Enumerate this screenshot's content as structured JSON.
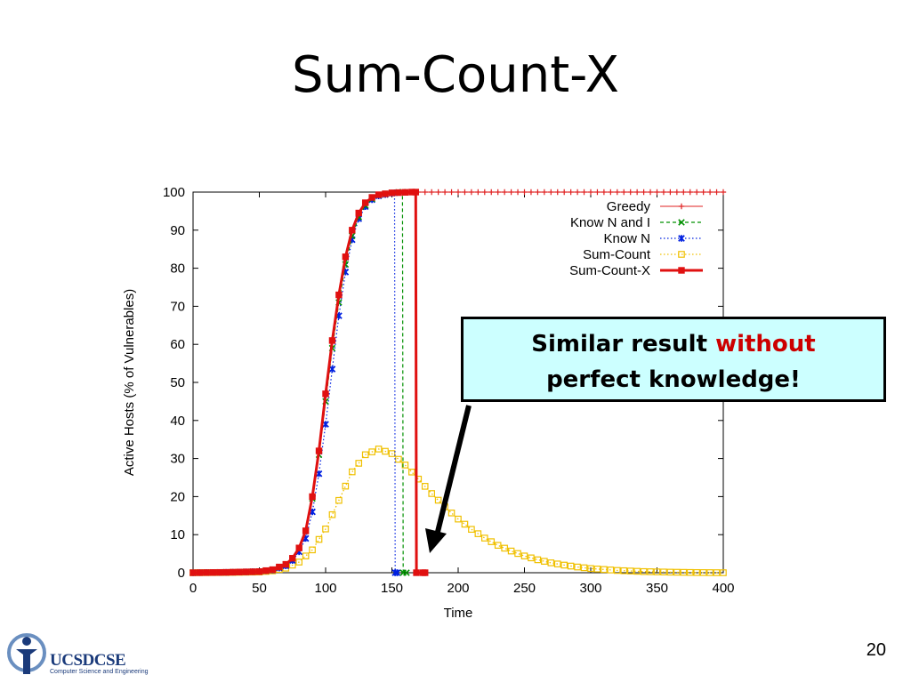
{
  "slide": {
    "title": "Sum-Count-X",
    "page_number": "20",
    "callout": {
      "text_before": "Similar result ",
      "text_emphasis": "without",
      "text_after": "perfect knowledge!"
    },
    "logo": {
      "name": "UCSDCSE",
      "subtitle": "Computer Science and Engineering"
    }
  },
  "colors": {
    "greedy": "#e02020",
    "know_n_and_i": "#009000",
    "know_n": "#0020e0",
    "sum_count": "#f0c000",
    "sum_count_x": "#e01010",
    "arrow": "#000000"
  },
  "chart_data": {
    "type": "line",
    "title": "",
    "xlabel": "Time",
    "ylabel": "Active Hosts (% of Vulnerables)",
    "xlim": [
      0,
      400
    ],
    "ylim": [
      0,
      100
    ],
    "xticks": [
      0,
      50,
      100,
      150,
      200,
      250,
      300,
      350,
      400
    ],
    "yticks": [
      0,
      10,
      20,
      30,
      40,
      50,
      60,
      70,
      80,
      90,
      100
    ],
    "grid": false,
    "legend_position": "top-right",
    "series": [
      {
        "name": "Greedy",
        "marker": "plus",
        "x": [
          0,
          25,
          50,
          60,
          70,
          75,
          80,
          85,
          90,
          95,
          100,
          105,
          110,
          115,
          120,
          125,
          130,
          135,
          140,
          150,
          160,
          200,
          250,
          300,
          350,
          400
        ],
        "y": [
          0,
          0.1,
          0.3,
          0.8,
          2.2,
          3.8,
          6.5,
          11,
          20,
          32,
          47,
          61,
          73,
          83,
          90,
          94.5,
          97.2,
          98.6,
          99.3,
          99.8,
          100,
          100,
          100,
          100,
          100,
          100
        ]
      },
      {
        "name": "Know N and I",
        "marker": "x",
        "x": [
          0,
          25,
          50,
          60,
          70,
          75,
          80,
          85,
          90,
          95,
          100,
          105,
          110,
          115,
          120,
          125,
          130,
          135,
          140,
          150,
          158,
          158.5,
          161
        ],
        "y": [
          0,
          0.1,
          0.3,
          0.8,
          2.2,
          3.8,
          6.5,
          11,
          19.5,
          31,
          45,
          59,
          71,
          81,
          88.5,
          93.5,
          96.5,
          98.2,
          99.2,
          99.8,
          100,
          0,
          0
        ]
      },
      {
        "name": "Know N",
        "marker": "asterisk",
        "x": [
          0,
          25,
          50,
          60,
          70,
          75,
          80,
          85,
          90,
          95,
          100,
          105,
          110,
          115,
          120,
          125,
          130,
          135,
          140,
          150,
          152,
          152.5,
          154
        ],
        "y": [
          0,
          0.1,
          0.3,
          0.7,
          1.8,
          3.2,
          5.5,
          9,
          16,
          26,
          39,
          53.5,
          67.5,
          79,
          87.5,
          93,
          96.2,
          98,
          99,
          99.7,
          99.8,
          0,
          0
        ]
      },
      {
        "name": "Sum-Count",
        "marker": "square-open",
        "x": [
          0,
          25,
          50,
          60,
          70,
          80,
          90,
          100,
          110,
          120,
          130,
          140,
          150,
          160,
          170,
          180,
          190,
          200,
          210,
          220,
          230,
          240,
          250,
          260,
          270,
          280,
          290,
          300,
          320,
          340,
          360,
          380,
          400
        ],
        "y": [
          0,
          0.05,
          0.2,
          0.5,
          1.2,
          2.8,
          6,
          11.5,
          19,
          26.5,
          31,
          32.5,
          31.3,
          28.3,
          24.6,
          20.8,
          17.3,
          14.1,
          11.4,
          9.1,
          7.2,
          5.7,
          4.4,
          3.4,
          2.6,
          2,
          1.5,
          1.1,
          0.6,
          0.3,
          0.15,
          0.05,
          0
        ]
      },
      {
        "name": "Sum-Count-X",
        "marker": "square-filled",
        "x": [
          0,
          25,
          50,
          60,
          70,
          75,
          80,
          85,
          90,
          95,
          100,
          105,
          110,
          115,
          120,
          125,
          130,
          135,
          140,
          150,
          165,
          168,
          168.5,
          175
        ],
        "y": [
          0,
          0.1,
          0.3,
          0.8,
          2.2,
          3.8,
          6.5,
          11,
          20,
          32,
          47,
          61,
          73,
          83,
          90,
          94.5,
          97.2,
          98.6,
          99.3,
          99.8,
          100,
          100,
          0,
          0
        ]
      }
    ]
  }
}
